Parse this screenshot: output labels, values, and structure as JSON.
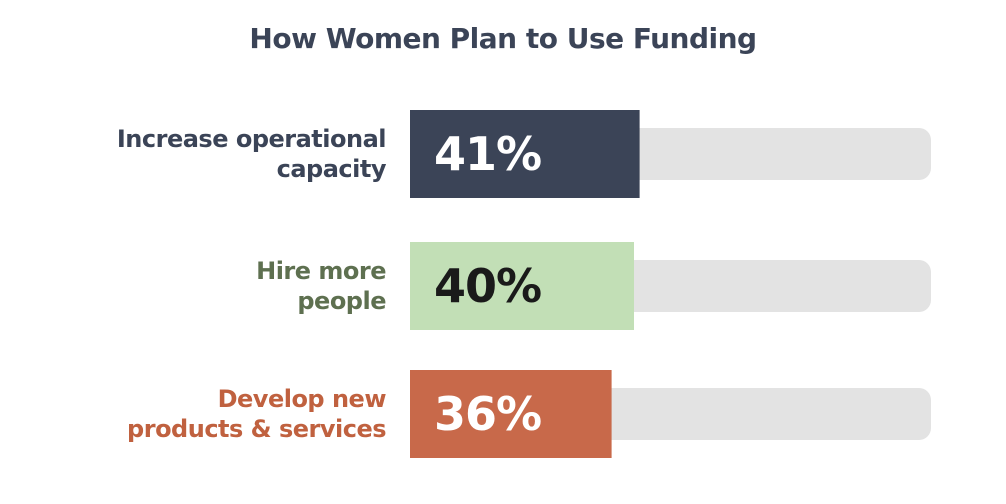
{
  "chart_data": {
    "type": "bar",
    "orientation": "horizontal",
    "title": "How Women Plan to Use Funding",
    "xlim": [
      0,
      100
    ],
    "grid": false,
    "categories": [
      [
        "Increase operational",
        "capacity"
      ],
      [
        "Hire more",
        "people"
      ],
      [
        "Develop new",
        "products & services"
      ]
    ],
    "values": [
      41,
      40,
      36
    ],
    "value_labels": [
      "41%",
      "40%",
      "36%"
    ],
    "colors": [
      "#3b4457",
      "#c2dfb6",
      "#c8694a"
    ],
    "label_colors": [
      "#3b4457",
      "#5e7050",
      "#c0613f"
    ],
    "value_text_colors": [
      "#ffffff",
      "#1a1a1a",
      "#ffffff"
    ],
    "track_color": "#e3e3e3"
  }
}
